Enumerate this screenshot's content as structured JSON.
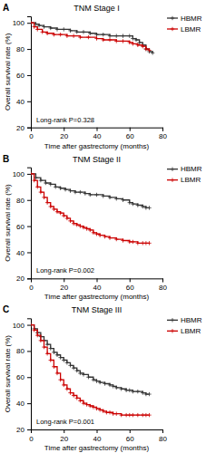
{
  "chart_data": [
    {
      "type": "step",
      "title": "TNM Stage I",
      "annotations": [
        "A",
        "Long-rank P=0.328"
      ],
      "x_label": "Time after gastrectomy (months)",
      "y_label": "Overall survival rate (%)",
      "xlim": [
        0,
        80
      ],
      "xticks": [
        0,
        20,
        40,
        60,
        80
      ],
      "ylim": [
        20,
        105
      ],
      "yticks": [
        20,
        40,
        60,
        80,
        100
      ],
      "grid": false,
      "legend": "right",
      "series": [
        {
          "name": "HBMR",
          "color": "#333333",
          "marker": "plus",
          "x": [
            0,
            3,
            5,
            8,
            12,
            16,
            20,
            24,
            28,
            32,
            36,
            40,
            44,
            48,
            52,
            56,
            60,
            62,
            64,
            66,
            68,
            70,
            72,
            74
          ],
          "values": [
            100,
            99,
            98,
            97,
            96,
            95,
            95,
            94,
            93,
            93,
            92,
            91,
            91,
            90,
            90,
            90,
            90,
            88,
            87,
            85,
            83,
            80,
            78,
            77
          ]
        },
        {
          "name": "LBMR",
          "color": "#cc0000",
          "marker": "plus",
          "x": [
            0,
            2,
            4,
            7,
            10,
            14,
            18,
            22,
            26,
            30,
            35,
            40,
            44,
            48,
            52,
            56,
            60,
            62,
            65,
            68,
            70,
            72
          ],
          "values": [
            100,
            97,
            95,
            93,
            92,
            91,
            91,
            90,
            90,
            89,
            89,
            88,
            87,
            87,
            86,
            86,
            85,
            84,
            83,
            82,
            80,
            79
          ]
        }
      ]
    },
    {
      "type": "step",
      "title": "TNM Stage II",
      "annotations": [
        "B",
        "Long-rank P=0.002"
      ],
      "x_label": "Time after gastrectomy (months)",
      "y_label": "Overall survival rate (%)",
      "xlim": [
        0,
        80
      ],
      "xticks": [
        0,
        20,
        40,
        60,
        80
      ],
      "ylim": [
        20,
        105
      ],
      "yticks": [
        20,
        40,
        60,
        80,
        100
      ],
      "grid": false,
      "legend": "right",
      "series": [
        {
          "name": "HBMR",
          "color": "#333333",
          "marker": "plus",
          "x": [
            0,
            3,
            6,
            9,
            12,
            15,
            18,
            21,
            24,
            27,
            30,
            33,
            36,
            40,
            44,
            48,
            52,
            56,
            60,
            62,
            65,
            68,
            70,
            72
          ],
          "values": [
            100,
            97,
            95,
            93,
            92,
            90,
            89,
            88,
            87,
            86,
            86,
            85,
            84,
            84,
            83,
            82,
            81,
            80,
            78,
            77,
            76,
            75,
            74,
            74
          ]
        },
        {
          "name": "LBMR",
          "color": "#cc0000",
          "marker": "plus",
          "x": [
            0,
            2,
            4,
            6,
            8,
            10,
            12,
            14,
            16,
            18,
            20,
            22,
            24,
            26,
            28,
            30,
            32,
            34,
            36,
            38,
            40,
            42,
            45,
            48,
            52,
            56,
            60,
            62,
            65,
            68,
            70,
            72
          ],
          "values": [
            100,
            95,
            90,
            86,
            82,
            78,
            75,
            73,
            71,
            70,
            68,
            66,
            64,
            62,
            61,
            60,
            59,
            58,
            57,
            55,
            54,
            53,
            52,
            51,
            50,
            49,
            48,
            48,
            47,
            47,
            47,
            47
          ]
        }
      ]
    },
    {
      "type": "step",
      "title": "TNM Stage III",
      "annotations": [
        "C",
        "Long-rank P=0.001"
      ],
      "x_label": "Time after gastrectomy (months)",
      "y_label": "Overall survival rate (%)",
      "xlim": [
        0,
        80
      ],
      "xticks": [
        0,
        20,
        40,
        60,
        80
      ],
      "ylim": [
        20,
        105
      ],
      "yticks": [
        20,
        40,
        60,
        80,
        100
      ],
      "grid": false,
      "legend": "right",
      "series": [
        {
          "name": "HBMR",
          "color": "#333333",
          "marker": "plus",
          "x": [
            0,
            2,
            4,
            6,
            8,
            10,
            12,
            14,
            16,
            18,
            20,
            22,
            24,
            26,
            28,
            30,
            32,
            35,
            38,
            40,
            42,
            45,
            48,
            50,
            52,
            55,
            58,
            60,
            62,
            65,
            68,
            70,
            72
          ],
          "values": [
            100,
            97,
            94,
            91,
            88,
            85,
            82,
            79,
            77,
            75,
            73,
            71,
            69,
            67,
            65,
            63,
            62,
            60,
            58,
            57,
            56,
            55,
            54,
            53,
            52,
            51,
            50,
            50,
            49,
            49,
            48,
            47,
            47
          ]
        },
        {
          "name": "LBMR",
          "color": "#cc0000",
          "marker": "plus",
          "x": [
            0,
            2,
            4,
            6,
            8,
            10,
            12,
            14,
            16,
            18,
            20,
            22,
            24,
            26,
            28,
            30,
            32,
            34,
            36,
            38,
            40,
            42,
            44,
            46,
            48,
            50,
            52,
            55,
            58,
            60,
            62,
            65,
            68,
            70,
            72
          ],
          "values": [
            100,
            96,
            92,
            88,
            83,
            78,
            73,
            68,
            63,
            58,
            54,
            51,
            48,
            46,
            44,
            42,
            40,
            39,
            38,
            37,
            36,
            35,
            34,
            33,
            33,
            32,
            32,
            31,
            31,
            31,
            31,
            31,
            31,
            31,
            31
          ]
        }
      ]
    }
  ]
}
